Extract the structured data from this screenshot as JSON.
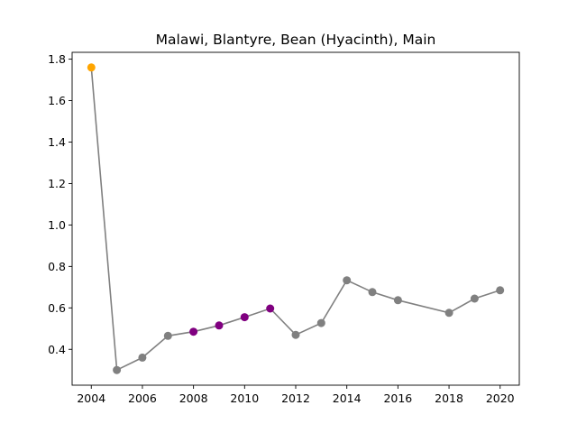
{
  "chart_data": {
    "type": "line",
    "title": "Malawi, Blantyre, Bean (Hyacinth), Main",
    "xlabel": "",
    "ylabel": "",
    "xlim": [
      2003.25,
      2020.75
    ],
    "ylim": [
      0.227,
      1.833
    ],
    "xticks": [
      2004,
      2006,
      2008,
      2010,
      2012,
      2014,
      2016,
      2018,
      2020
    ],
    "yticks": [
      0.4,
      0.6,
      0.8,
      1.0,
      1.2,
      1.4,
      1.6,
      1.8
    ],
    "ytick_labels": [
      "0.4",
      "0.6",
      "0.8",
      "1.0",
      "1.2",
      "1.4",
      "1.6",
      "1.8"
    ],
    "grid": false,
    "legend": "none",
    "line_color": "#808080",
    "series": [
      {
        "x": [
          2004,
          2005,
          2006,
          2007,
          2008,
          2009,
          2010,
          2011,
          2012,
          2013,
          2014,
          2015,
          2016,
          2018,
          2019,
          2020
        ],
        "y": [
          1.76,
          0.3,
          0.36,
          0.465,
          0.485,
          0.515,
          0.555,
          0.597,
          0.47,
          0.527,
          0.733,
          0.676,
          0.637,
          0.576,
          0.645,
          0.685
        ],
        "point_colors": [
          "#ffa500",
          "#808080",
          "#808080",
          "#808080",
          "#800080",
          "#800080",
          "#800080",
          "#800080",
          "#808080",
          "#808080",
          "#808080",
          "#808080",
          "#808080",
          "#808080",
          "#808080",
          "#808080"
        ]
      }
    ]
  }
}
